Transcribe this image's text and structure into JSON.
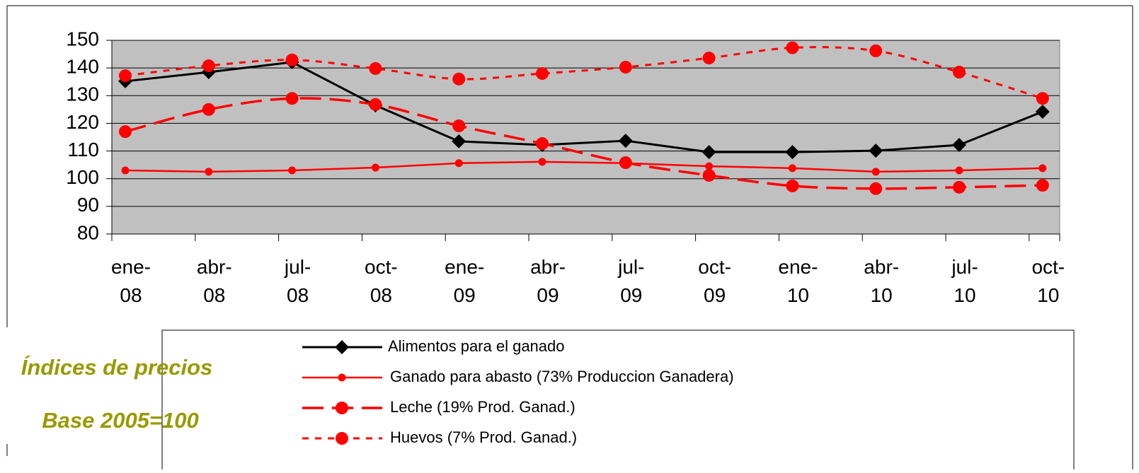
{
  "chart_data": {
    "type": "line",
    "annotations": [
      "Índices de precios",
      "Base 2005=100"
    ],
    "categories": [
      "ene-08",
      "abr-08",
      "jul-08",
      "oct-08",
      "ene-09",
      "abr-09",
      "jul-09",
      "oct-09",
      "ene-10",
      "abr-10",
      "jul-10",
      "oct-10"
    ],
    "ylim": [
      80,
      150
    ],
    "yticks": [
      80,
      90,
      100,
      110,
      120,
      130,
      140,
      150
    ],
    "grid": true,
    "series": [
      {
        "name": "Alimentos para el ganado",
        "color": "#000000",
        "dash": "solid",
        "marker": "diamond",
        "smooth": false,
        "values": [
          135.2,
          138.5,
          142.1,
          126.5,
          113.5,
          112.2,
          113.7,
          109.6,
          109.6,
          110.1,
          112.2,
          124.2
        ]
      },
      {
        "name": "Ganado para abasto (73% Produccion Ganadera)",
        "color": "#ff0000",
        "dash": "solid",
        "marker": "small-circle",
        "smooth": false,
        "values": [
          103,
          102.5,
          103,
          104,
          105.6,
          106.1,
          105.6,
          104.5,
          103.8,
          102.5,
          103,
          103.8
        ]
      },
      {
        "name": "Leche (19% Prod. Ganad.)",
        "color": "#ff0000",
        "dash": "long",
        "marker": "circle",
        "smooth": true,
        "values": [
          117,
          125,
          129,
          126.8,
          119.1,
          112.7,
          105.8,
          101.2,
          97.4,
          96.4,
          96.9,
          97.6
        ]
      },
      {
        "name": "Huevos (7% Prod. Ganad.)",
        "color": "#ff0000",
        "dash": "short",
        "marker": "circle",
        "smooth": true,
        "values": [
          137.2,
          140.8,
          142.9,
          139.8,
          136,
          138,
          140.3,
          143.6,
          147.3,
          146.2,
          138.5,
          129
        ]
      }
    ]
  }
}
